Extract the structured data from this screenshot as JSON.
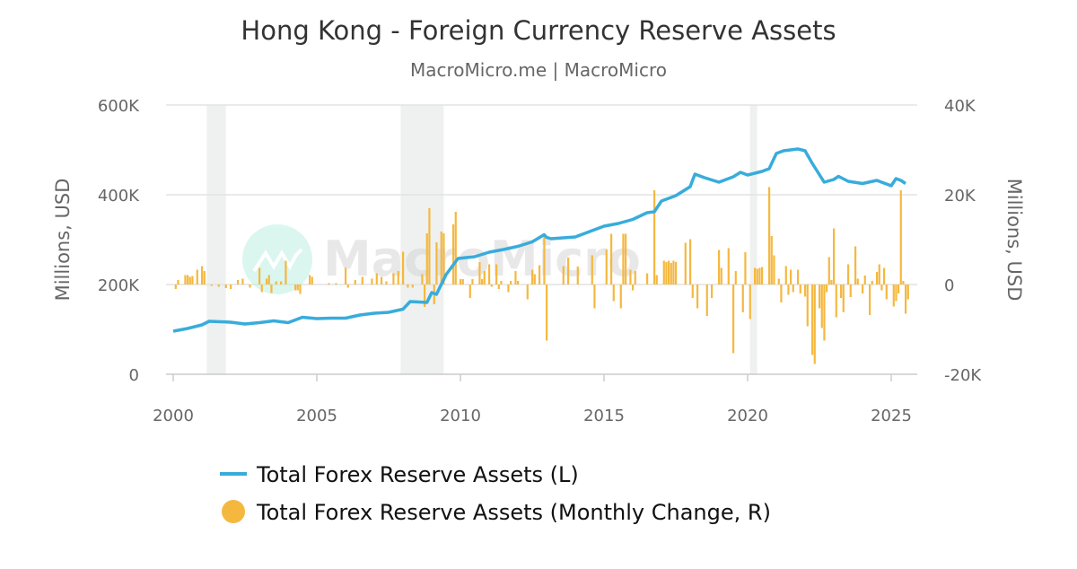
{
  "chart_data": {
    "type": "bar+line",
    "title": "Hong Kong - Foreign Currency Reserve Assets",
    "subtitle": "MacroMicro.me | MacroMicro",
    "watermark": "MacroMicro",
    "x_ticks": [
      "2000",
      "2005",
      "2010",
      "2015",
      "2020",
      "2025"
    ],
    "xlim": [
      "2000-01",
      "2025-10"
    ],
    "y_left": {
      "label": "Millions, USD",
      "range": [
        0,
        600000
      ],
      "ticks": [
        "0",
        "200K",
        "400K",
        "600K"
      ]
    },
    "y_right": {
      "label": "Millions, USD",
      "range": [
        -20000,
        40000
      ],
      "ticks": [
        "-20K",
        "0",
        "20K",
        "40K"
      ]
    },
    "grid": true,
    "legend_position": "bottom",
    "recessions": [
      [
        "2001-03",
        "2001-11"
      ],
      [
        "2007-12",
        "2009-06"
      ],
      [
        "2020-02",
        "2020-04"
      ]
    ],
    "colors": {
      "line": "#38ACDB",
      "bar": "#F5B83F",
      "recession": "#EEF1F0",
      "grid": "#E3E3E3"
    },
    "series": [
      {
        "name": "Total Forex Reserve Assets (L)",
        "type": "line",
        "axis": "left",
        "points": [
          [
            "2000-01",
            96000
          ],
          [
            "2000-07",
            102000
          ],
          [
            "2001-01",
            110000
          ],
          [
            "2001-04",
            118000
          ],
          [
            "2002-01",
            116000
          ],
          [
            "2002-07",
            112000
          ],
          [
            "2003-01",
            115000
          ],
          [
            "2003-07",
            119000
          ],
          [
            "2004-01",
            115000
          ],
          [
            "2004-07",
            127000
          ],
          [
            "2005-01",
            124000
          ],
          [
            "2005-07",
            125000
          ],
          [
            "2006-01",
            125000
          ],
          [
            "2006-07",
            132000
          ],
          [
            "2007-01",
            136000
          ],
          [
            "2007-07",
            138000
          ],
          [
            "2008-01",
            145000
          ],
          [
            "2008-04",
            162000
          ],
          [
            "2008-11",
            160000
          ],
          [
            "2009-01",
            182000
          ],
          [
            "2009-03",
            178000
          ],
          [
            "2009-07",
            222000
          ],
          [
            "2009-12",
            258000
          ],
          [
            "2010-07",
            262000
          ],
          [
            "2011-01",
            272000
          ],
          [
            "2011-07",
            278000
          ],
          [
            "2012-01",
            285000
          ],
          [
            "2012-07",
            295000
          ],
          [
            "2012-12",
            311000
          ],
          [
            "2013-01",
            305000
          ],
          [
            "2013-03",
            302000
          ],
          [
            "2014-01",
            306000
          ],
          [
            "2014-07",
            318000
          ],
          [
            "2015-01",
            330000
          ],
          [
            "2015-07",
            336000
          ],
          [
            "2016-01",
            345000
          ],
          [
            "2016-07",
            360000
          ],
          [
            "2016-10",
            362000
          ],
          [
            "2017-01",
            386000
          ],
          [
            "2017-07",
            398000
          ],
          [
            "2018-01",
            418000
          ],
          [
            "2018-03",
            446000
          ],
          [
            "2018-07",
            438000
          ],
          [
            "2019-01",
            428000
          ],
          [
            "2019-07",
            440000
          ],
          [
            "2019-10",
            450000
          ],
          [
            "2020-01",
            444000
          ],
          [
            "2020-07",
            452000
          ],
          [
            "2020-10",
            458000
          ],
          [
            "2021-01",
            492000
          ],
          [
            "2021-04",
            498000
          ],
          [
            "2021-10",
            502000
          ],
          [
            "2022-01",
            498000
          ],
          [
            "2022-04",
            470000
          ],
          [
            "2022-09",
            428000
          ],
          [
            "2023-01",
            434000
          ],
          [
            "2023-03",
            441000
          ],
          [
            "2023-07",
            430000
          ],
          [
            "2024-01",
            425000
          ],
          [
            "2024-07",
            432000
          ],
          [
            "2025-01",
            420000
          ],
          [
            "2025-03",
            436000
          ],
          [
            "2025-05",
            432000
          ],
          [
            "2025-07",
            425000
          ]
        ]
      },
      {
        "name": "Total Forex Reserve Assets (Monthly Change, R)",
        "type": "bar",
        "axis": "right",
        "points": [
          [
            "2000-02",
            -1000
          ],
          [
            "2000-03",
            1000
          ],
          [
            "2000-06",
            2100
          ],
          [
            "2000-07",
            2100
          ],
          [
            "2000-08",
            1700
          ],
          [
            "2000-09",
            1900
          ],
          [
            "2000-11",
            3300
          ],
          [
            "2001-01",
            4100
          ],
          [
            "2001-02",
            3000
          ],
          [
            "2001-05",
            -300
          ],
          [
            "2001-08",
            -500
          ],
          [
            "2001-11",
            -800
          ],
          [
            "2002-01",
            -1000
          ],
          [
            "2002-04",
            1000
          ],
          [
            "2002-06",
            1300
          ],
          [
            "2002-09",
            -700
          ],
          [
            "2003-01",
            3700
          ],
          [
            "2003-02",
            -1700
          ],
          [
            "2003-04",
            1300
          ],
          [
            "2003-05",
            2100
          ],
          [
            "2003-06",
            -1900
          ],
          [
            "2003-08",
            700
          ],
          [
            "2003-10",
            700
          ],
          [
            "2003-12",
            5300
          ],
          [
            "2004-04",
            -1300
          ],
          [
            "2004-05",
            -1300
          ],
          [
            "2004-06",
            -2100
          ],
          [
            "2004-10",
            2100
          ],
          [
            "2004-11",
            1700
          ],
          [
            "2005-06",
            300
          ],
          [
            "2005-09",
            300
          ],
          [
            "2006-01",
            3700
          ],
          [
            "2006-02",
            -700
          ],
          [
            "2006-05",
            1000
          ],
          [
            "2006-08",
            1700
          ],
          [
            "2006-12",
            1300
          ],
          [
            "2007-02",
            2500
          ],
          [
            "2007-04",
            1700
          ],
          [
            "2007-06",
            700
          ],
          [
            "2007-09",
            2500
          ],
          [
            "2007-11",
            3000
          ],
          [
            "2008-01",
            7300
          ],
          [
            "2008-03",
            -700
          ],
          [
            "2008-05",
            -700
          ],
          [
            "2008-09",
            2300
          ],
          [
            "2008-10",
            -5000
          ],
          [
            "2008-11",
            11400
          ],
          [
            "2008-12",
            17000
          ],
          [
            "2009-02",
            -4400
          ],
          [
            "2009-03",
            9400
          ],
          [
            "2009-05",
            11800
          ],
          [
            "2009-06",
            11400
          ],
          [
            "2009-10",
            13400
          ],
          [
            "2009-11",
            16200
          ],
          [
            "2010-01",
            1200
          ],
          [
            "2010-02",
            1200
          ],
          [
            "2010-05",
            -3000
          ],
          [
            "2010-06",
            1200
          ],
          [
            "2010-09",
            5000
          ],
          [
            "2010-10",
            1200
          ],
          [
            "2010-11",
            3000
          ],
          [
            "2011-01",
            4500
          ],
          [
            "2011-02",
            -500
          ],
          [
            "2011-04",
            4500
          ],
          [
            "2011-05",
            -1000
          ],
          [
            "2011-06",
            800
          ],
          [
            "2011-09",
            -1700
          ],
          [
            "2011-10",
            800
          ],
          [
            "2011-12",
            3000
          ],
          [
            "2012-01",
            800
          ],
          [
            "2012-05",
            -3300
          ],
          [
            "2012-07",
            3300
          ],
          [
            "2012-08",
            2300
          ],
          [
            "2012-10",
            4300
          ],
          [
            "2012-12",
            10700
          ],
          [
            "2013-01",
            -12500
          ],
          [
            "2013-08",
            4100
          ],
          [
            "2013-10",
            6000
          ],
          [
            "2014-02",
            4000
          ],
          [
            "2014-08",
            6500
          ],
          [
            "2014-09",
            -5300
          ],
          [
            "2015-02",
            7800
          ],
          [
            "2015-04",
            11300
          ],
          [
            "2015-05",
            -3700
          ],
          [
            "2015-08",
            -5300
          ],
          [
            "2015-09",
            11300
          ],
          [
            "2015-10",
            11300
          ],
          [
            "2015-12",
            3300
          ],
          [
            "2016-01",
            -1300
          ],
          [
            "2016-02",
            3000
          ],
          [
            "2016-07",
            2500
          ],
          [
            "2016-10",
            21000
          ],
          [
            "2016-11",
            2100
          ],
          [
            "2017-02",
            5300
          ],
          [
            "2017-03",
            5000
          ],
          [
            "2017-04",
            5300
          ],
          [
            "2017-05",
            4800
          ],
          [
            "2017-06",
            5300
          ],
          [
            "2017-07",
            5000
          ],
          [
            "2017-11",
            9300
          ],
          [
            "2018-01",
            10100
          ],
          [
            "2018-02",
            -3000
          ],
          [
            "2018-04",
            -5300
          ],
          [
            "2018-08",
            -7000
          ],
          [
            "2018-10",
            -3000
          ],
          [
            "2019-01",
            7700
          ],
          [
            "2019-02",
            3700
          ],
          [
            "2019-05",
            8100
          ],
          [
            "2019-07",
            -15300
          ],
          [
            "2019-08",
            3000
          ],
          [
            "2019-11",
            -6200
          ],
          [
            "2019-12",
            7200
          ],
          [
            "2020-02",
            -7700
          ],
          [
            "2020-04",
            3700
          ],
          [
            "2020-05",
            3500
          ],
          [
            "2020-06",
            3700
          ],
          [
            "2020-07",
            3900
          ],
          [
            "2020-10",
            21700
          ],
          [
            "2020-11",
            10800
          ],
          [
            "2020-12",
            6500
          ],
          [
            "2021-02",
            1300
          ],
          [
            "2021-03",
            -4000
          ],
          [
            "2021-05",
            4100
          ],
          [
            "2021-06",
            -2300
          ],
          [
            "2021-07",
            3300
          ],
          [
            "2021-08",
            -1700
          ],
          [
            "2021-10",
            3300
          ],
          [
            "2021-11",
            -2000
          ],
          [
            "2022-01",
            -2700
          ],
          [
            "2022-02",
            -9300
          ],
          [
            "2022-04",
            -15700
          ],
          [
            "2022-05",
            -17700
          ],
          [
            "2022-07",
            -5300
          ],
          [
            "2022-08",
            -9700
          ],
          [
            "2022-09",
            -12500
          ],
          [
            "2022-10",
            -1700
          ],
          [
            "2022-11",
            6100
          ],
          [
            "2022-12",
            1000
          ],
          [
            "2023-01",
            12500
          ],
          [
            "2023-02",
            -7300
          ],
          [
            "2023-04",
            -3000
          ],
          [
            "2023-05",
            -6200
          ],
          [
            "2023-07",
            4500
          ],
          [
            "2023-08",
            -2800
          ],
          [
            "2023-10",
            8500
          ],
          [
            "2023-11",
            1300
          ],
          [
            "2024-01",
            -2000
          ],
          [
            "2024-02",
            2000
          ],
          [
            "2024-04",
            -6800
          ],
          [
            "2024-05",
            800
          ],
          [
            "2024-07",
            2800
          ],
          [
            "2024-08",
            4500
          ],
          [
            "2024-09",
            -1300
          ],
          [
            "2024-10",
            3700
          ],
          [
            "2024-11",
            -3300
          ],
          [
            "2025-02",
            -4900
          ],
          [
            "2025-03",
            -3700
          ],
          [
            "2025-04",
            -2000
          ],
          [
            "2025-05",
            21000
          ],
          [
            "2025-06",
            800
          ],
          [
            "2025-07",
            -6500
          ],
          [
            "2025-08",
            -3300
          ]
        ]
      }
    ]
  }
}
